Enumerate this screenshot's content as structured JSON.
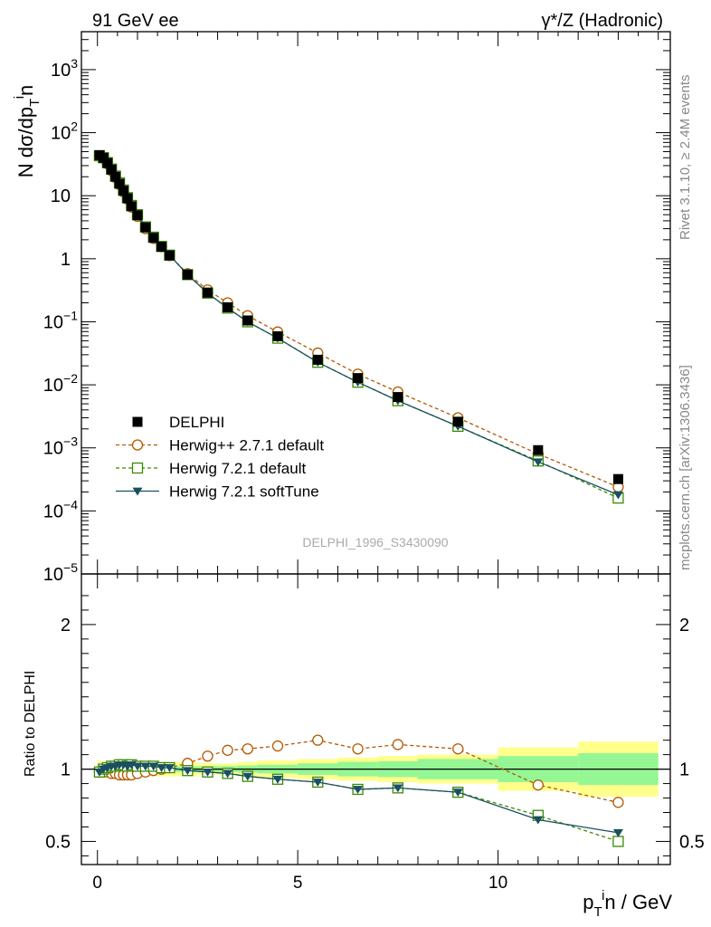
{
  "header": {
    "left_title": "91 GeV ee",
    "right_title": "γ*/Z (Hadronic)"
  },
  "side_labels": {
    "rivet": "Rivet 3.1.10, ≥ 2.4M events",
    "mcplots": "mcplots.cern.ch [arXiv:1306.3436]"
  },
  "watermark": "DELPHI_1996_S3430090",
  "axes": {
    "top_ylabel": "N dσ/dp_T^in",
    "bottom_ylabel": "Ratio to DELPHI",
    "xlabel": "p_T^in / GeV"
  },
  "legend": {
    "placement": "lower-left",
    "entries": [
      {
        "label": "DELPHI",
        "color": "#000000",
        "marker": "filled-square"
      },
      {
        "label": "Herwig++ 2.7.1 default",
        "color": "#b35900",
        "marker": "open-circle",
        "line": "dashed"
      },
      {
        "label": "Herwig 7.2.1 default",
        "color": "#3a8a00",
        "marker": "open-square",
        "line": "dashed"
      },
      {
        "label": "Herwig 7.2.1 softTune",
        "color": "#1a5060",
        "marker": "filled-triangle-down",
        "line": "solid"
      }
    ]
  },
  "chart_data": [
    {
      "type": "scatter",
      "panel": "main",
      "yscale": "log",
      "xlim": [
        -0.4,
        14.3
      ],
      "ylim": [
        1e-05,
        4000
      ],
      "yticks": [
        1e-05,
        0.0001,
        0.001,
        0.01,
        0.1,
        1,
        10,
        100,
        1000
      ],
      "ytick_labels": [
        {
          "base": "10",
          "exp": "−5"
        },
        {
          "base": "10",
          "exp": "−4"
        },
        {
          "base": "10",
          "exp": "−3"
        },
        {
          "base": "10",
          "exp": "−2"
        },
        {
          "base": "10",
          "exp": "−1"
        },
        {
          "base": "1",
          "exp": ""
        },
        {
          "base": "10",
          "exp": ""
        },
        {
          "base": "10",
          "exp": "2"
        },
        {
          "base": "10",
          "exp": "3"
        }
      ],
      "x": [
        0.05,
        0.15,
        0.25,
        0.35,
        0.45,
        0.55,
        0.65,
        0.75,
        0.85,
        1.0,
        1.2,
        1.4,
        1.6,
        1.8,
        2.25,
        2.75,
        3.25,
        3.75,
        4.5,
        5.5,
        6.5,
        7.5,
        9.0,
        11.0,
        13.0
      ],
      "series": [
        {
          "name": "DELPHI",
          "values": [
            44,
            40,
            33,
            26,
            20,
            15.5,
            12,
            9.1,
            6.8,
            4.9,
            3.15,
            2.15,
            1.55,
            1.13,
            0.56,
            0.29,
            0.17,
            0.105,
            0.059,
            0.025,
            0.0128,
            0.0064,
            0.0026,
            0.00092,
            0.00032
          ]
        },
        {
          "name": "Herwig++ 2.7.1 default",
          "values": [
            43,
            39,
            32,
            25,
            19.5,
            15,
            11.5,
            8.8,
            6.6,
            4.7,
            3.0,
            2.1,
            1.55,
            1.12,
            0.58,
            0.32,
            0.2,
            0.125,
            0.069,
            0.032,
            0.0148,
            0.0077,
            0.003,
            0.0008,
            0.00024
          ]
        },
        {
          "name": "Herwig 7.2.1 default",
          "values": [
            43,
            40,
            33.5,
            26.5,
            20.5,
            16,
            12.3,
            9.3,
            7.0,
            5.0,
            3.2,
            2.2,
            1.57,
            1.14,
            0.56,
            0.285,
            0.165,
            0.1,
            0.055,
            0.0228,
            0.011,
            0.0056,
            0.0022,
            0.00062,
            0.00016
          ]
        },
        {
          "name": "Herwig 7.2.1 softTune",
          "values": [
            43,
            40,
            33.5,
            26.5,
            20.5,
            16,
            12.3,
            9.3,
            7.0,
            5.0,
            3.2,
            2.2,
            1.57,
            1.14,
            0.56,
            0.285,
            0.165,
            0.1,
            0.055,
            0.0228,
            0.011,
            0.0056,
            0.0022,
            0.0006,
            0.00018
          ]
        }
      ]
    },
    {
      "type": "scatter",
      "panel": "ratio",
      "xlim": [
        -0.4,
        14.3
      ],
      "ylim": [
        0.34,
        2.35
      ],
      "yticks": [
        0.5,
        1,
        2
      ],
      "ytick_labels": [
        "0.5",
        "1",
        "2"
      ],
      "xticks": [
        0,
        5,
        10
      ],
      "xtick_labels": [
        "0",
        "5",
        "10"
      ],
      "x": [
        0.05,
        0.15,
        0.25,
        0.35,
        0.45,
        0.55,
        0.65,
        0.75,
        0.85,
        1.0,
        1.2,
        1.4,
        1.6,
        1.8,
        2.25,
        2.75,
        3.25,
        3.75,
        4.5,
        5.5,
        6.5,
        7.5,
        9.0,
        11.0,
        13.0
      ],
      "bands": {
        "edges": [
          0,
          0.1,
          0.2,
          0.3,
          0.4,
          0.5,
          0.6,
          0.7,
          0.8,
          0.9,
          1.1,
          1.3,
          1.5,
          1.7,
          1.9,
          2.5,
          3.0,
          3.5,
          4.0,
          5.0,
          6.0,
          7.0,
          8.0,
          10.0,
          12.0,
          14.0
        ],
        "green": [
          0.02,
          0.02,
          0.02,
          0.02,
          0.02,
          0.02,
          0.02,
          0.02,
          0.02,
          0.02,
          0.02,
          0.02,
          0.02,
          0.02,
          0.02,
          0.02,
          0.02,
          0.025,
          0.03,
          0.04,
          0.05,
          0.055,
          0.07,
          0.09,
          0.11
        ],
        "yellow": [
          0.06,
          0.05,
          0.05,
          0.05,
          0.05,
          0.05,
          0.05,
          0.05,
          0.05,
          0.05,
          0.05,
          0.05,
          0.05,
          0.05,
          0.05,
          0.04,
          0.04,
          0.05,
          0.06,
          0.07,
          0.08,
          0.09,
          0.1,
          0.15,
          0.19
        ]
      },
      "series": [
        {
          "name": "Herwig++ 2.7.1 default",
          "values": [
            0.98,
            0.99,
            0.98,
            0.97,
            0.97,
            0.96,
            0.96,
            0.96,
            0.96,
            0.97,
            0.98,
            0.99,
            1.0,
            1.01,
            1.04,
            1.09,
            1.13,
            1.14,
            1.16,
            1.2,
            1.14,
            1.17,
            1.14,
            0.89,
            0.77
          ]
        },
        {
          "name": "Herwig 7.2.1 default",
          "values": [
            0.98,
            1.0,
            1.01,
            1.02,
            1.02,
            1.03,
            1.03,
            1.02,
            1.03,
            1.02,
            1.02,
            1.02,
            1.01,
            1.01,
            0.99,
            0.98,
            0.97,
            0.95,
            0.93,
            0.91,
            0.86,
            0.87,
            0.84,
            0.68,
            0.5
          ]
        },
        {
          "name": "Herwig 7.2.1 softTune",
          "values": [
            0.98,
            1.0,
            1.01,
            1.02,
            1.02,
            1.03,
            1.03,
            1.02,
            1.03,
            1.02,
            1.02,
            1.02,
            1.01,
            1.01,
            0.99,
            0.98,
            0.97,
            0.95,
            0.93,
            0.91,
            0.86,
            0.87,
            0.84,
            0.65,
            0.56
          ]
        }
      ]
    }
  ]
}
